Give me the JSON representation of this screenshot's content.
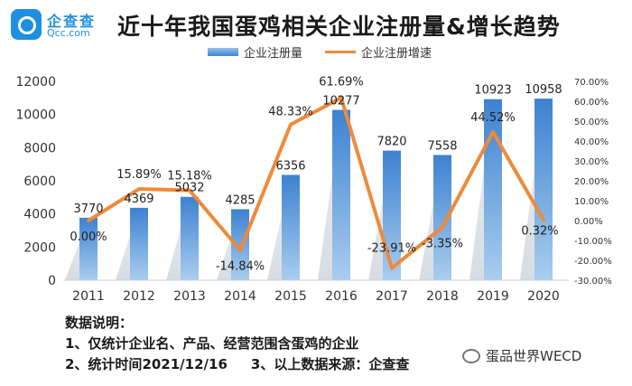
{
  "logo": {
    "name_cn": "企查查",
    "name_en": "Qcc.com"
  },
  "chart_data": {
    "type": "bar",
    "title": "近十年我国蛋鸡相关企业注册量&增长趋势",
    "categories": [
      "2011",
      "2012",
      "2013",
      "2014",
      "2015",
      "2016",
      "2017",
      "2018",
      "2019",
      "2020"
    ],
    "series": [
      {
        "name": "企业注册量",
        "type": "bar",
        "axis": "left",
        "color": "#4a8fd8",
        "values": [
          3770,
          4369,
          5032,
          4285,
          6356,
          10277,
          7820,
          7558,
          10923,
          10958
        ],
        "labels": [
          "3770",
          "4369",
          "5032",
          "4285",
          "6356",
          "10277",
          "7820",
          "7558",
          "10923",
          "10958"
        ]
      },
      {
        "name": "企业注册增速",
        "type": "line",
        "axis": "right",
        "color": "#ee8a3a",
        "values": [
          0.0,
          15.89,
          15.18,
          -14.84,
          48.33,
          61.69,
          -23.91,
          -3.35,
          44.52,
          0.32
        ],
        "labels": [
          "0.00%",
          "15.89%",
          "15.18%",
          "-14.84%",
          "48.33%",
          "61.69%",
          "-23.91%",
          "-3.35%",
          "44.52%",
          "0.32%"
        ]
      }
    ],
    "y_left": {
      "ylim": [
        0,
        12000
      ],
      "ticks": [
        "0",
        "2000",
        "4000",
        "6000",
        "8000",
        "10000",
        "12000"
      ]
    },
    "y_right": {
      "ylim": [
        -30,
        70
      ],
      "ticks": [
        "-30.00%",
        "-20.00%",
        "-10.00%",
        "0.00%",
        "10.00%",
        "20.00%",
        "30.00%",
        "40.00%",
        "50.00%",
        "60.00%",
        "70.00%"
      ]
    },
    "grid": false,
    "legend": "top-center"
  },
  "notes": {
    "heading": "数据说明：",
    "line1": "1、仅统计企业名、产品、经营范围含蛋鸡的企业",
    "line2a": "2、统计时间2021/12/16",
    "line2b": "3、以上数据来源：企查查"
  },
  "watermark": {
    "text": "蛋品世界WECD"
  }
}
